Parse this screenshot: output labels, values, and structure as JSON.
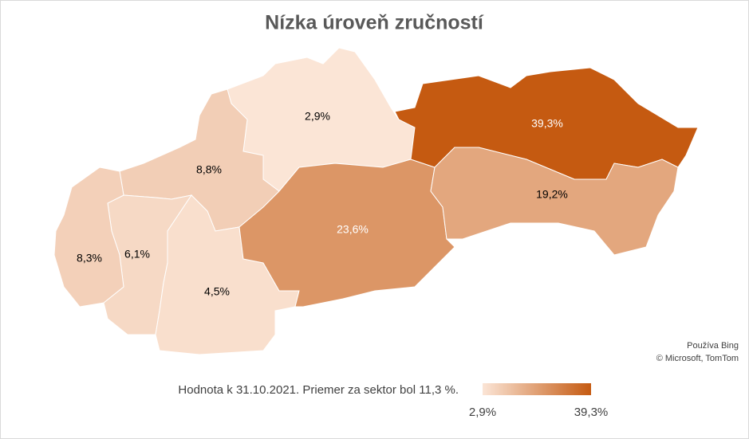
{
  "chart_data": {
    "type": "map",
    "title": "Nízka úroveň zručností",
    "values": [
      2.9,
      8.8,
      6.1,
      8.3,
      4.5,
      23.6,
      39.3,
      19.2
    ],
    "value_labels": [
      "2,9%",
      "8,8%",
      "6,1%",
      "8,3%",
      "4,5%",
      "23,6%",
      "39,3%",
      "19,2%"
    ],
    "color_range": [
      "#fbe5d6",
      "#c55a11"
    ],
    "legend": {
      "note": "Hodnota k 31.10.2021. Priemer za sektor bol 11,3 %.",
      "min": {
        "value": 2.9,
        "label": "2,9%"
      },
      "max": {
        "value": 39.3,
        "label": "39,3%"
      }
    },
    "attribution": [
      "Používa Bing",
      "© Microsoft, TomTom"
    ]
  }
}
